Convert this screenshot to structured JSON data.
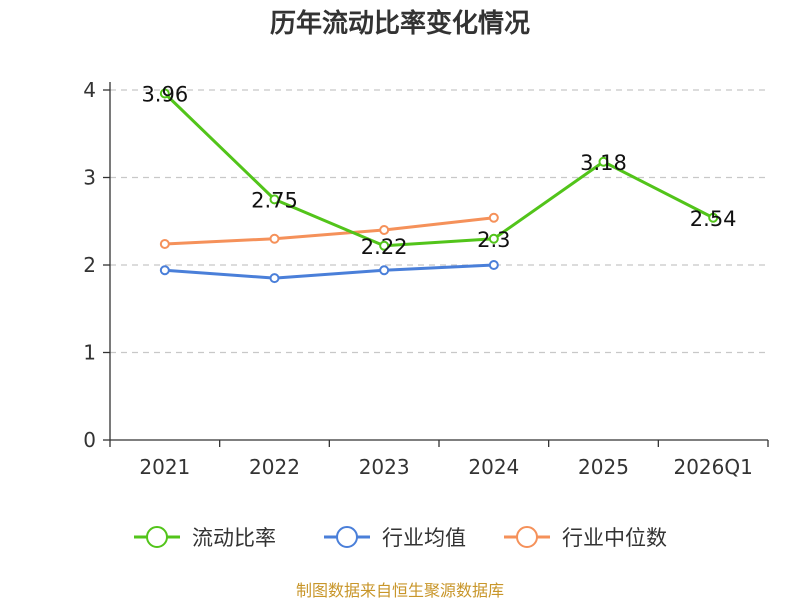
{
  "chart_data": {
    "type": "line",
    "title": "历年流动比率变化情况",
    "categories": [
      "2021",
      "2022",
      "2023",
      "2024",
      "2025",
      "2026Q1"
    ],
    "ylim": [
      0,
      4
    ],
    "yticks": [
      "0",
      "1",
      "2",
      "3",
      "4"
    ],
    "grid": true,
    "legend_position": "bottom",
    "series": [
      {
        "name": "流动比率",
        "color": "#52c41a",
        "values": [
          3.96,
          2.75,
          2.22,
          2.3,
          3.18,
          2.54
        ],
        "labels": [
          "3.96",
          "2.75",
          "2.22",
          "2.3",
          "3.18",
          "2.54"
        ]
      },
      {
        "name": "行业均值",
        "color": "#4a7fd9",
        "values": [
          1.94,
          1.85,
          1.94,
          2.0,
          null,
          null
        ]
      },
      {
        "name": "行业中位数",
        "color": "#f5915a",
        "values": [
          2.24,
          2.3,
          2.4,
          2.54,
          null,
          null
        ]
      }
    ]
  },
  "source_text": "制图数据来自恒生聚源数据库"
}
